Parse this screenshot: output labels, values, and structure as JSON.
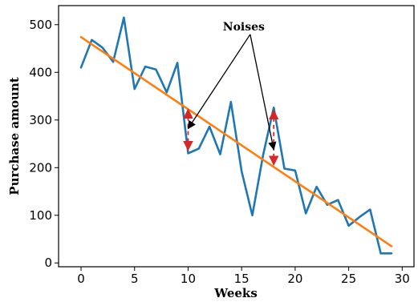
{
  "chart_data": {
    "type": "line",
    "title": "",
    "xlabel": "Weeks",
    "ylabel": "Purchase amount",
    "xlim": [
      -2.1,
      31.1
    ],
    "ylim": [
      -8,
      540
    ],
    "x_ticks": [
      0,
      5,
      10,
      15,
      20,
      25,
      30
    ],
    "y_ticks": [
      0,
      100,
      200,
      300,
      400,
      500
    ],
    "grid": false,
    "series": [
      {
        "name": "",
        "color": "#1f77b4",
        "x": [
          0,
          1,
          2,
          3,
          4,
          5,
          6,
          7,
          8,
          9,
          10,
          11,
          12,
          13,
          14,
          15,
          16,
          17,
          18,
          19,
          20,
          21,
          22,
          23,
          24,
          25,
          26,
          27,
          28,
          29
        ],
        "values": [
          410,
          468,
          452,
          422,
          515,
          365,
          412,
          406,
          358,
          420,
          230,
          240,
          286,
          228,
          338,
          192,
          100,
          226,
          326,
          198,
          194,
          104,
          160,
          122,
          132,
          78,
          96,
          112,
          20,
          20
        ]
      },
      {
        "name": "",
        "color": "#ff7f0e",
        "x": [
          0,
          29
        ],
        "values": [
          474,
          35
        ]
      }
    ],
    "annotations": [
      {
        "text": "Noises",
        "text_at": [
          15.2,
          488
        ],
        "arrows_to": [
          [
            10,
            282
          ],
          [
            18,
            238
          ]
        ]
      }
    ],
    "noise_markers": [
      {
        "x": 10,
        "from": 322,
        "to": 237,
        "color": "#d62728"
      },
      {
        "x": 18,
        "from": 320,
        "to": 206,
        "color": "#d62728"
      }
    ]
  }
}
